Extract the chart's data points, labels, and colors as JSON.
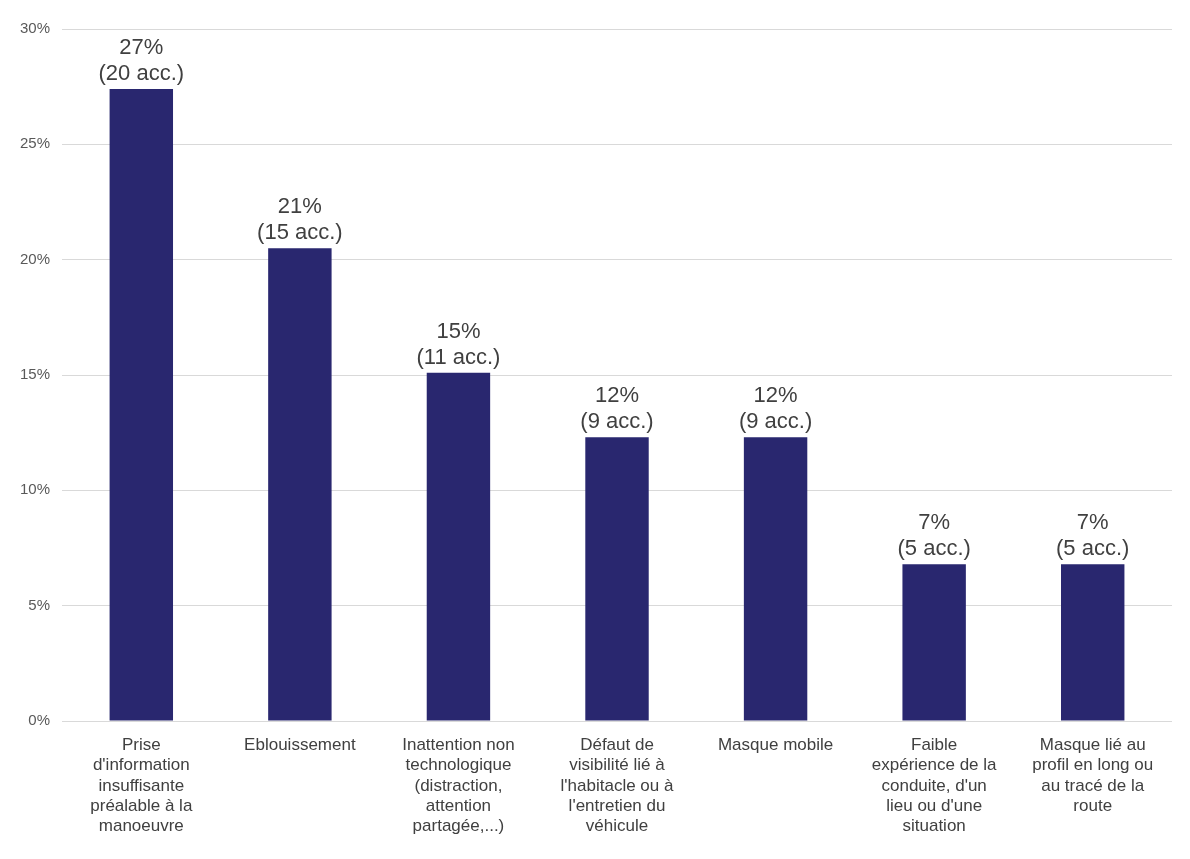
{
  "chart_data": {
    "type": "bar",
    "categories": [
      "Prise d'information insuffisante préalable à la manoeuvre",
      "Eblouissement",
      "Inattention non technologique (distraction, attention partagée,...)",
      "Défaut de visibilité lié à l'habitacle ou à l'entretien du véhicule",
      "Masque mobile",
      "Faible expérience de la conduite, d'un lieu ou d'une situation",
      "Masque lié au profil en long ou au tracé de la route"
    ],
    "values": [
      27.4,
      20.5,
      15.1,
      12.3,
      12.3,
      6.8,
      6.8
    ],
    "value_labels": [
      "27%\n(20 acc.)",
      "21%\n(15 acc.)",
      "15%\n(11 acc.)",
      "12%\n(9 acc.)",
      "12%\n(9 acc.)",
      "7%\n(5 acc.)",
      "7%\n(5 acc.)"
    ],
    "color": "#29276f",
    "ylim": [
      0,
      30
    ],
    "yticks": [
      {
        "value": 0,
        "label": "0%"
      },
      {
        "value": 5,
        "label": "5%"
      },
      {
        "value": 10,
        "label": "10%"
      },
      {
        "value": 15,
        "label": "15%"
      },
      {
        "value": 20,
        "label": "20%"
      },
      {
        "value": 25,
        "label": "25%"
      },
      {
        "value": 30,
        "label": "30%"
      }
    ],
    "grid": "y",
    "legend": false
  }
}
